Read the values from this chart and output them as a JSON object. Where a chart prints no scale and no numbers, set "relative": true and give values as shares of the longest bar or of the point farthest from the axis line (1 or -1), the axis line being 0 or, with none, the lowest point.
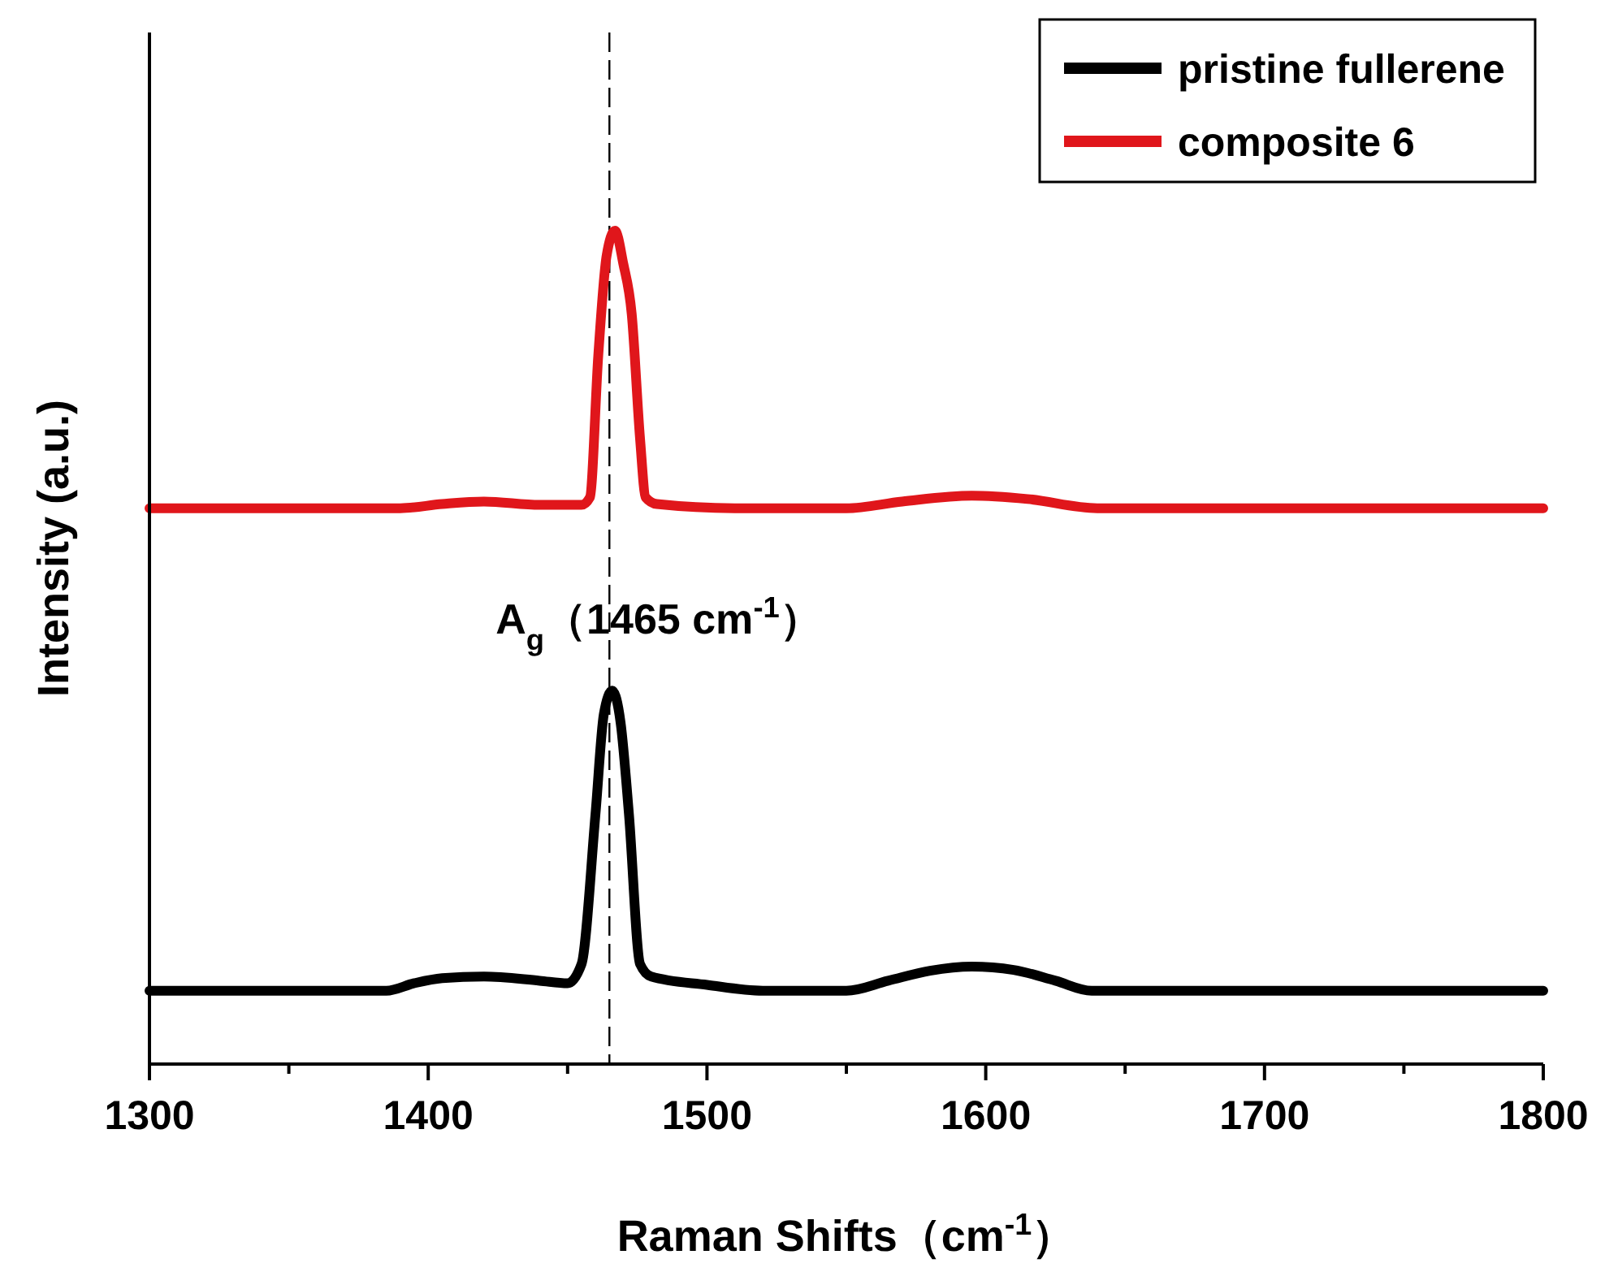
{
  "chart_data": {
    "type": "line",
    "relative": true,
    "xlabel": "Raman Shifts（cm$^{-1}$）",
    "ylabel": "Intensity (a.u.)",
    "xlim": [
      1300,
      1800
    ],
    "xticks": [
      1300,
      {
        "value": 1350,
        "label": null
      },
      1400,
      {
        "value": 1450,
        "label": null
      },
      1500,
      {
        "value": 1550,
        "label": null
      },
      1600,
      {
        "value": 1650,
        "label": null
      },
      1700,
      {
        "value": 1750,
        "label": null
      },
      1800
    ],
    "legend": "top right",
    "grid": false,
    "marker": "none",
    "line_style": "solid",
    "ref_lines": [
      {
        "axis": "x",
        "value": 1465,
        "label": "A$_{g}$（1465 cm$^{-1}$）",
        "line_style": "dashed",
        "color": "#000000"
      }
    ],
    "series": [
      {
        "name": "pristine fullerene",
        "color": "#000000",
        "x": [
          1300,
          1385,
          1395,
          1405,
          1420,
          1440,
          1450,
          1455,
          1460,
          1463,
          1466,
          1469,
          1472,
          1476,
          1480,
          1500,
          1520,
          1550,
          1565,
          1580,
          1595,
          1610,
          1625,
          1638,
          1800
        ],
        "values": [
          0.088,
          0.088,
          0.097,
          0.103,
          0.105,
          0.1,
          0.097,
          0.12,
          0.3,
          0.42,
          0.448,
          0.41,
          0.3,
          0.12,
          0.105,
          0.095,
          0.088,
          0.088,
          0.1,
          0.112,
          0.117,
          0.113,
          0.1,
          0.088,
          0.088
        ]
      },
      {
        "name": "composite 6",
        "color": "#e0161b",
        "x": [
          1300,
          1390,
          1405,
          1420,
          1440,
          1455,
          1458,
          1461,
          1464,
          1467,
          1470,
          1473,
          1476,
          1478,
          1482,
          1510,
          1550,
          1570,
          1595,
          1615,
          1640,
          1800
        ],
        "values": [
          0.667,
          0.667,
          0.672,
          0.675,
          0.671,
          0.671,
          0.68,
          0.85,
          0.97,
          1,
          0.96,
          0.9,
          0.75,
          0.68,
          0.672,
          0.667,
          0.667,
          0.675,
          0.682,
          0.678,
          0.667,
          0.667
        ]
      }
    ]
  }
}
